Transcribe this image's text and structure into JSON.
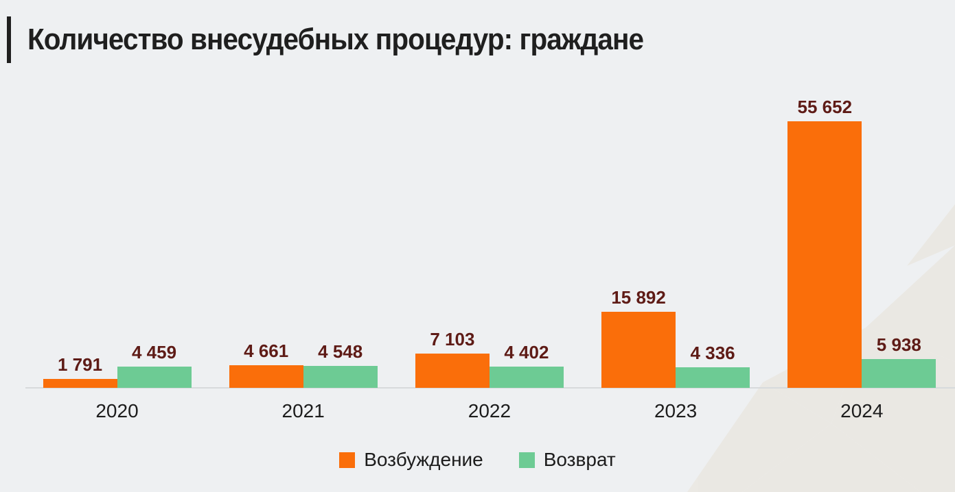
{
  "title": {
    "text": "Количество внесудебных процедур: граждане",
    "accent_color": "#1f1f1f"
  },
  "colors": {
    "background": "#eef0f2",
    "axis_line": "#d7dadc",
    "value_label": "#5e1b16",
    "watermark": "#e7dfd2"
  },
  "chart_data": {
    "type": "bar",
    "title": "Количество внесудебных процедур: граждане",
    "categories": [
      "2020",
      "2021",
      "2022",
      "2023",
      "2024"
    ],
    "series": [
      {
        "name": "Возбуждение",
        "color": "#fa6e0a",
        "values": [
          1791,
          4661,
          7103,
          15892,
          55652
        ],
        "labels": [
          "1 791",
          "4 661",
          "7 103",
          "15 892",
          "55 652"
        ]
      },
      {
        "name": "Возврат",
        "color": "#6dcb94",
        "values": [
          4459,
          4548,
          4402,
          4336,
          5938
        ],
        "labels": [
          "4 459",
          "4 548",
          "4 402",
          "4 336",
          "5 938"
        ]
      }
    ],
    "xlabel": "",
    "ylabel": "",
    "ylim": [
      0,
      58000
    ],
    "grid": false,
    "data_labels": true,
    "legend_position": "bottom"
  },
  "legend": {
    "items": [
      {
        "label": "Возбуждение",
        "color": "#fa6e0a"
      },
      {
        "label": "Возврат",
        "color": "#6dcb94"
      }
    ]
  }
}
